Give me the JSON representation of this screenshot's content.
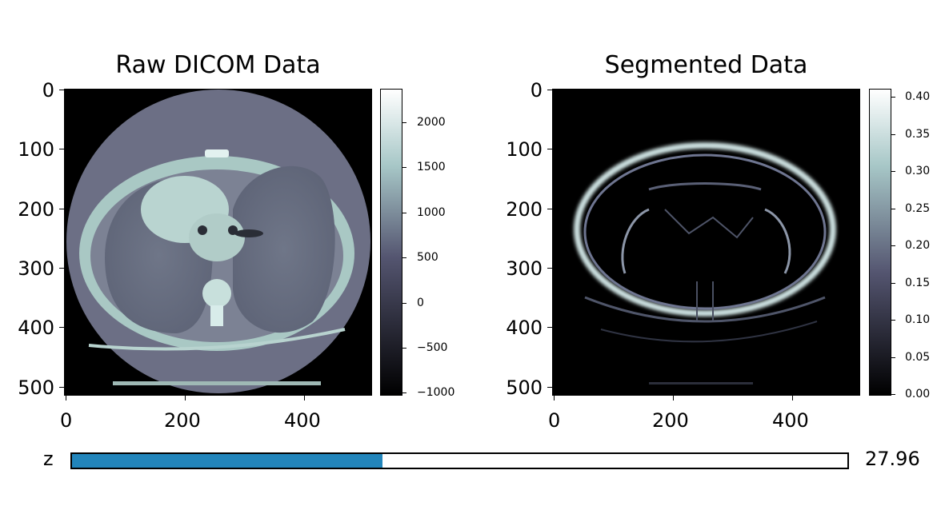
{
  "panels": [
    {
      "title": "Raw DICOM Data",
      "x_ticks": [
        "0",
        "200",
        "400"
      ],
      "y_ticks": [
        "0",
        "100",
        "200",
        "300",
        "400",
        "500"
      ],
      "colorbar_ticks": [
        "2000",
        "1500",
        "1000",
        "500",
        "0",
        "−500",
        "−1000"
      ],
      "colormap": "bone"
    },
    {
      "title": "Segmented Data",
      "x_ticks": [
        "0",
        "200",
        "400"
      ],
      "y_ticks": [
        "0",
        "100",
        "200",
        "300",
        "400",
        "500"
      ],
      "colorbar_ticks": [
        "0.40",
        "0.35",
        "0.30",
        "0.25",
        "0.20",
        "0.15",
        "0.10",
        "0.05",
        "0.00"
      ],
      "colormap": "bone"
    }
  ],
  "slider": {
    "label": "z",
    "value_text": "27.96",
    "fill_fraction": 0.4,
    "fill_color": "#2285bb"
  }
}
